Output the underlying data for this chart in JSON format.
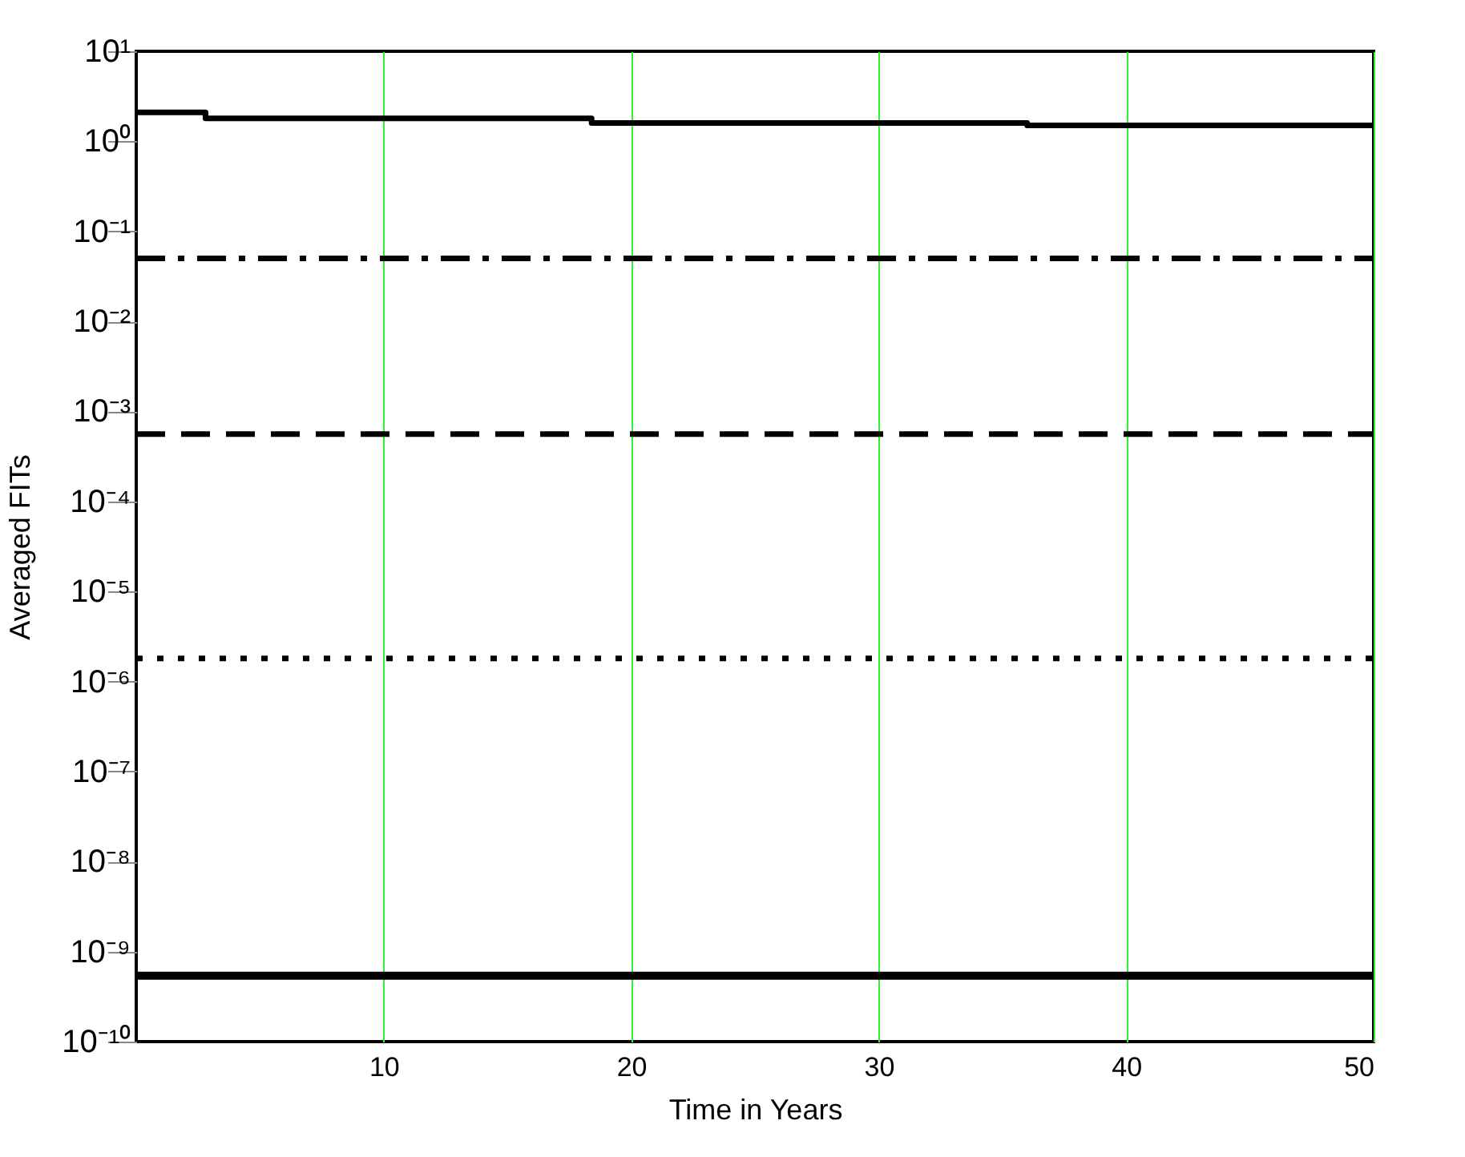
{
  "chart_data": {
    "type": "line",
    "xlabel": "Time in Years",
    "ylabel": "Averaged FITs",
    "log": "y",
    "grid": "x",
    "xlim": [
      0,
      50
    ],
    "xticks": [
      10,
      20,
      30,
      40,
      50
    ],
    "ylim": [
      1e-10,
      10
    ],
    "yticks": [
      {
        "value": 10,
        "label": "10¹"
      },
      {
        "value": 1,
        "label": "10⁰"
      },
      {
        "value": 0.1,
        "label": "10⁻¹"
      },
      {
        "value": 0.01,
        "label": "10⁻²"
      },
      {
        "value": 0.001,
        "label": "10⁻³"
      },
      {
        "value": 0.0001,
        "label": "10⁻⁴"
      },
      {
        "value": 1e-05,
        "label": "10⁻⁵"
      },
      {
        "value": 1e-06,
        "label": "10⁻⁶"
      },
      {
        "value": 1e-07,
        "label": "10⁻⁷"
      },
      {
        "value": 1e-08,
        "label": "10⁻⁸"
      },
      {
        "value": 1e-09,
        "label": "10⁻⁹"
      },
      {
        "value": 1e-10,
        "label": "10⁻¹⁰"
      }
    ],
    "series": [
      {
        "type": "step",
        "color": "#000000",
        "line_style": "solid",
        "x": [
          0,
          2.8,
          18.4,
          36,
          50
        ],
        "values": [
          2.1,
          1.8,
          1.6,
          1.5,
          1.5
        ]
      },
      {
        "type": "line",
        "color": "#000000",
        "line_style": "dashdot",
        "x": [
          0,
          50
        ],
        "values": [
          0.05,
          0.05
        ]
      },
      {
        "type": "line",
        "color": "#000000",
        "line_style": "dashed",
        "x": [
          0,
          50
        ],
        "values": [
          0.00056,
          0.00056
        ]
      },
      {
        "type": "line",
        "color": "#000000",
        "line_style": "dotted",
        "x": [
          0,
          50
        ],
        "values": [
          1.8e-06,
          1.8e-06
        ]
      },
      {
        "type": "line",
        "color": "#000000",
        "line_style": "solid",
        "x": [
          0,
          50
        ],
        "values": [
          5.4e-10,
          5.4e-10
        ]
      }
    ]
  }
}
